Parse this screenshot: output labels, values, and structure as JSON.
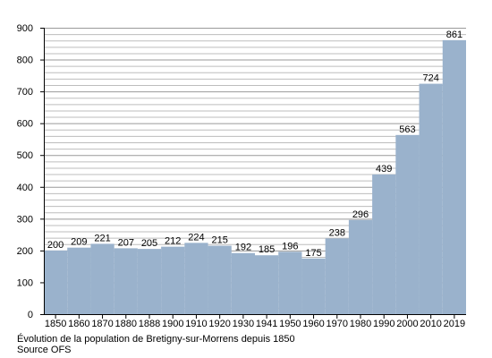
{
  "chart_data": {
    "type": "bar",
    "categories": [
      "1850",
      "1860",
      "1870",
      "1880",
      "1888",
      "1900",
      "1910",
      "1920",
      "1930",
      "1941",
      "1950",
      "1960",
      "1970",
      "1980",
      "1990",
      "2000",
      "2010",
      "2019"
    ],
    "values": [
      200,
      209,
      221,
      207,
      205,
      212,
      224,
      215,
      192,
      185,
      196,
      175,
      238,
      296,
      439,
      563,
      724,
      861
    ],
    "data_labels": [
      "200",
      "209",
      "221",
      "207",
      "205",
      "212",
      "224",
      "215",
      "192",
      "185",
      "196",
      "175",
      "238",
      "296",
      "439",
      "563",
      "724",
      "861"
    ],
    "ylim": [
      0,
      900
    ],
    "y_ticks": [
      0,
      100,
      200,
      300,
      400,
      500,
      600,
      700,
      800,
      900
    ],
    "grid": true,
    "bar_color": "#9ab2cc",
    "grid_color": "#bdbdbd",
    "title": "",
    "xlabel": "",
    "ylabel": ""
  },
  "caption": {
    "line1": "Évolution de la population de Bretigny-sur-Morrens depuis 1850",
    "line2": "Source OFS"
  }
}
